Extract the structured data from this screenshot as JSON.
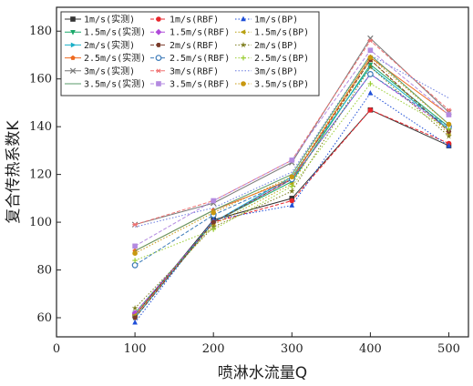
{
  "chart_data": {
    "type": "line",
    "title": "",
    "xlabel": "喷淋水流量Q",
    "ylabel": "复合传热系数K",
    "xlim": [
      0,
      525
    ],
    "ylim": [
      52,
      190
    ],
    "xticks": [
      0,
      100,
      200,
      300,
      400,
      500
    ],
    "yticks": [
      60,
      80,
      100,
      120,
      140,
      160,
      180
    ],
    "x": [
      100,
      200,
      300,
      400,
      500
    ],
    "grid": false,
    "legend_position": "top-left",
    "legend_columns": 3,
    "series": [
      {
        "name": "1m/s(实测)",
        "color": "#333333",
        "line": "solid",
        "marker": "square",
        "values": [
          61,
          101,
          110,
          147,
          132
        ]
      },
      {
        "name": "1m/s(RBF)",
        "color": "#e8262c",
        "line": "dashed",
        "marker": "circle",
        "values": [
          61,
          100,
          109,
          147,
          133
        ]
      },
      {
        "name": "1m/s(BP)",
        "color": "#1f4fd8",
        "line": "dotted",
        "marker": "triangle-up",
        "values": [
          58,
          101,
          107,
          154,
          132
        ]
      },
      {
        "name": "1.5m/s(实测)",
        "color": "#1aa86a",
        "line": "solid",
        "marker": "triangle-down",
        "values": [
          62,
          100,
          117,
          166,
          140
        ]
      },
      {
        "name": "1.5m/s(RBF)",
        "color": "#b04ad9",
        "line": "dashed",
        "marker": "diamond",
        "values": [
          62,
          100,
          118,
          162,
          139
        ]
      },
      {
        "name": "1.5m/s(BP)",
        "color": "#b8a012",
        "line": "dotted",
        "marker": "triangle-left",
        "values": [
          61,
          99,
          116,
          168,
          137
        ]
      },
      {
        "name": "2m/s(实测)",
        "color": "#1ab0c8",
        "line": "solid",
        "marker": "triangle-right",
        "values": [
          60,
          100,
          119,
          165,
          139
        ]
      },
      {
        "name": "2m/s(RBF)",
        "color": "#7a3b2a",
        "line": "dashed",
        "marker": "hexagon",
        "values": [
          60,
          100,
          118,
          168,
          138
        ]
      },
      {
        "name": "2m/s(BP)",
        "color": "#7d7d1e",
        "line": "dotted",
        "marker": "star",
        "values": [
          64,
          98,
          113,
          165,
          136
        ]
      },
      {
        "name": "2.5m/s(实测)",
        "color": "#ee6a20",
        "line": "solid",
        "marker": "pentagon",
        "values": [
          88,
          105,
          118,
          169,
          145
        ]
      },
      {
        "name": "2.5m/s(RBF)",
        "color": "#3b7ab8",
        "line": "dashed",
        "marker": "circle-open",
        "values": [
          82,
          103,
          118,
          162,
          140
        ]
      },
      {
        "name": "2.5m/s(BP)",
        "color": "#9acd32",
        "line": "dotted",
        "marker": "plus",
        "values": [
          84,
          97,
          115,
          158,
          139
        ]
      },
      {
        "name": "3m/s(实测)",
        "color": "#777777",
        "line": "solid",
        "marker": "x",
        "values": [
          99,
          108,
          125,
          177,
          146
        ]
      },
      {
        "name": "3m/s(RBF)",
        "color": "#f07070",
        "line": "dashed",
        "marker": "asterisk",
        "values": [
          99,
          109,
          126,
          176,
          147
        ]
      },
      {
        "name": "3m/s(BP)",
        "color": "#6a7ce0",
        "line": "dotted",
        "marker": "none",
        "values": [
          98,
          106,
          121,
          170,
          152
        ]
      },
      {
        "name": "3.5m/s(实测)",
        "color": "#5a9a68",
        "line": "solid",
        "marker": "none",
        "values": [
          88,
          105,
          120,
          170,
          141
        ]
      },
      {
        "name": "3.5m/s(RBF)",
        "color": "#b48ae0",
        "line": "dashed",
        "marker": "square",
        "values": [
          90,
          109,
          126,
          172,
          145
        ]
      },
      {
        "name": "3.5m/s(BP)",
        "color": "#c89810",
        "line": "dotted",
        "marker": "circle",
        "values": [
          87,
          104,
          119,
          169,
          141
        ]
      }
    ]
  }
}
